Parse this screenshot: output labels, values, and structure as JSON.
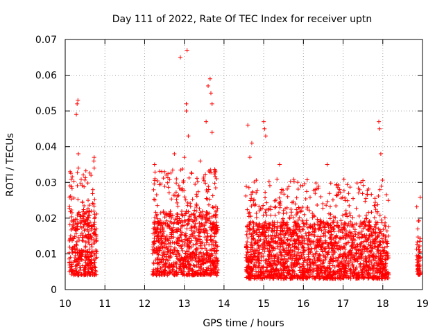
{
  "chart_data": {
    "type": "scatter",
    "title": "Day 111 of 2022, Rate Of TEC Index for receiver uptn",
    "xlabel": "GPS time / hours",
    "ylabel": "ROTI / TECUs",
    "xlim": [
      10,
      19
    ],
    "ylim": [
      0,
      0.07
    ],
    "x_ticks": [
      "10",
      "11",
      "12",
      "13",
      "14",
      "15",
      "16",
      "17",
      "18",
      "19"
    ],
    "y_ticks": [
      "0",
      "0.01",
      "0.02",
      "0.03",
      "0.04",
      "0.05",
      "0.06",
      "0.07"
    ],
    "grid": true,
    "marker": "plus",
    "color": "#ff0000",
    "clusters": [
      {
        "x_range": [
          10.1,
          10.8
        ],
        "y_base": [
          0.004,
          0.022
        ],
        "outliers": [
          [
            10.28,
            0.049
          ],
          [
            10.3,
            0.052
          ],
          [
            10.32,
            0.053
          ],
          [
            10.33,
            0.038
          ],
          [
            10.33,
            0.034
          ],
          [
            10.65,
            0.032
          ],
          [
            10.72,
            0.036
          ],
          [
            10.73,
            0.037
          ],
          [
            10.73,
            0.034
          ]
        ]
      },
      {
        "x_range": [
          12.2,
          13.85
        ],
        "y_base": [
          0.004,
          0.022
        ],
        "outliers": [
          [
            12.25,
            0.035
          ],
          [
            12.5,
            0.033
          ],
          [
            12.75,
            0.038
          ],
          [
            12.9,
            0.065
          ],
          [
            13.0,
            0.037
          ],
          [
            13.05,
            0.052
          ],
          [
            13.05,
            0.05
          ],
          [
            13.07,
            0.067
          ],
          [
            13.1,
            0.043
          ],
          [
            13.4,
            0.036
          ],
          [
            13.55,
            0.047
          ],
          [
            13.6,
            0.057
          ],
          [
            13.65,
            0.059
          ],
          [
            13.67,
            0.055
          ],
          [
            13.7,
            0.052
          ],
          [
            13.7,
            0.044
          ]
        ]
      },
      {
        "x_range": [
          14.55,
          18.15
        ],
        "y_base": [
          0.003,
          0.019
        ],
        "outliers": [
          [
            14.6,
            0.046
          ],
          [
            14.65,
            0.037
          ],
          [
            14.7,
            0.041
          ],
          [
            15.0,
            0.047
          ],
          [
            15.02,
            0.045
          ],
          [
            15.05,
            0.043
          ],
          [
            15.4,
            0.035
          ],
          [
            16.6,
            0.035
          ],
          [
            17.9,
            0.047
          ],
          [
            17.92,
            0.045
          ],
          [
            17.95,
            0.038
          ]
        ]
      },
      {
        "x_range": [
          18.85,
          18.95
        ],
        "y_base": [
          0.004,
          0.014
        ],
        "outliers": [
          [
            18.88,
            0.017
          ]
        ]
      }
    ]
  }
}
